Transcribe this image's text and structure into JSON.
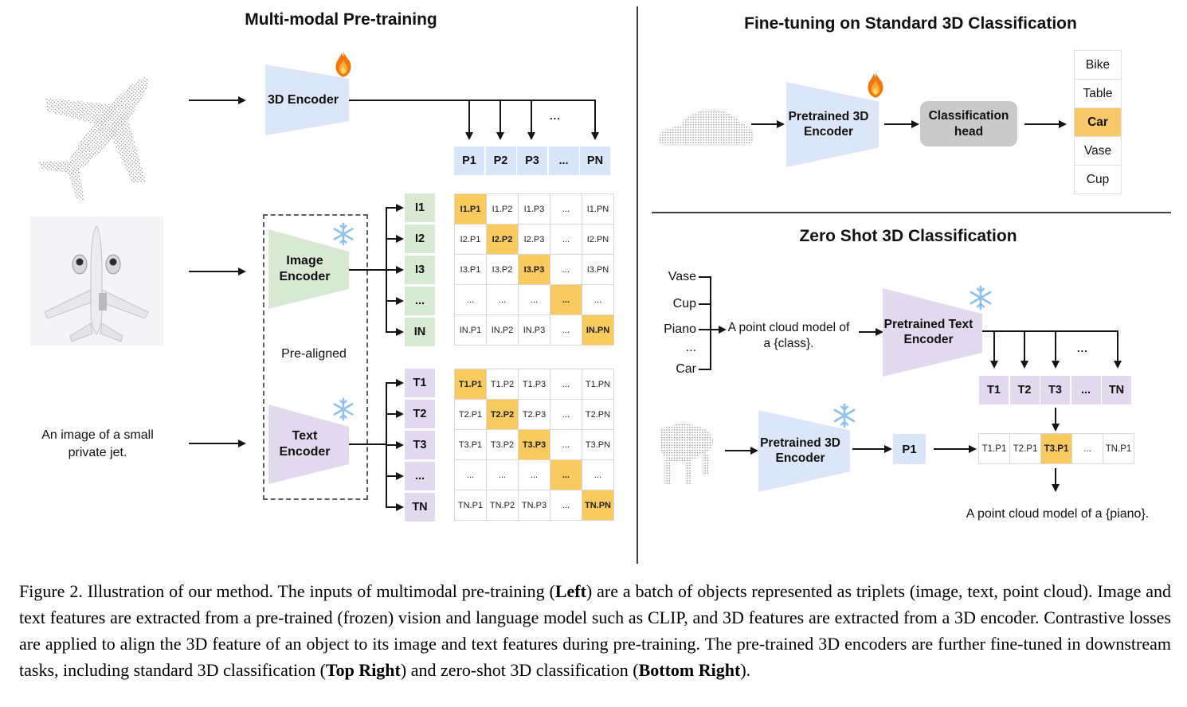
{
  "figure": {
    "left": {
      "title": "Multi-modal Pre-training",
      "encoder_3d_label": "3D Encoder",
      "image_encoder_label_1": "Image",
      "image_encoder_label_2": "Encoder",
      "text_encoder_label_1": "Text",
      "text_encoder_label_2": "Encoder",
      "pre_aligned": "Pre-aligned",
      "image_caption_1": "An image of a small",
      "image_caption_2": "private jet.",
      "dots": "...",
      "p_row": [
        "P1",
        "P2",
        "P3",
        "...",
        "PN"
      ],
      "i_col": [
        "I1",
        "I2",
        "I3",
        "...",
        "IN"
      ],
      "t_col": [
        "T1",
        "T2",
        "T3",
        "...",
        "TN"
      ],
      "i_matrix": [
        [
          "I1.P1",
          "I1.P2",
          "I1.P3",
          "...",
          "I1.PN"
        ],
        [
          "I2.P1",
          "I2.P2",
          "I2.P3",
          "...",
          "I2.PN"
        ],
        [
          "I3.P1",
          "I3.P2",
          "I3.P3",
          "...",
          "I3.PN"
        ],
        [
          "...",
          "...",
          "...",
          "...",
          "..."
        ],
        [
          "IN.P1",
          "IN.P2",
          "IN.P3",
          "...",
          "IN.PN"
        ]
      ],
      "t_matrix": [
        [
          "T1.P1",
          "T1.P2",
          "T1.P3",
          "...",
          "T1.PN"
        ],
        [
          "T2.P1",
          "T2.P2",
          "T2.P3",
          "...",
          "T2.PN"
        ],
        [
          "T3.P1",
          "T3.P2",
          "T3.P3",
          "...",
          "T3.PN"
        ],
        [
          "...",
          "...",
          "...",
          "...",
          "..."
        ],
        [
          "TN.P1",
          "TN.P2",
          "TN.P3",
          "...",
          "TN.PN"
        ]
      ]
    },
    "top_right": {
      "title": "Fine-tuning on Standard 3D Classification",
      "encoder_label_1": "Pretrained 3D",
      "encoder_label_2": "Encoder",
      "head_label_1": "Classification",
      "head_label_2": "head",
      "classes": [
        "Bike",
        "Table",
        "Car",
        "Vase",
        "Cup"
      ],
      "highlighted_class": "Car"
    },
    "bottom_right": {
      "title": "Zero Shot 3D Classification",
      "prompt_classes": [
        "Vase",
        "Cup",
        "Piano",
        "...",
        "Car"
      ],
      "prompt_1": "A point cloud model of",
      "prompt_2": "a {class}.",
      "text_encoder_label_1": "Pretrained Text",
      "text_encoder_label_2": "Encoder",
      "encoder_label_1": "Pretrained 3D",
      "encoder_label_2": "Encoder",
      "p1": "P1",
      "dots": "...",
      "t_row": [
        "T1",
        "T2",
        "T3",
        "...",
        "TN"
      ],
      "sim_row": [
        "T1.P1",
        "T2.P1",
        "T3.P1",
        "...",
        "TN.P1"
      ],
      "highlighted_sim": "T3.P1",
      "result": "A point cloud model of a {piano}."
    },
    "caption": {
      "p1": "Figure 2. Illustration of our method. The inputs of multimodal pre-training (",
      "b1": "Left",
      "p2": ") are a batch of objects represented as triplets (image, text, point cloud). Image and text features are extracted from a pre-trained (frozen) vision and language model such as CLIP, and 3D features are extracted from a 3D encoder. Contrastive losses are applied to align the 3D feature of an object to its image and text features during pre-training. The pre-trained 3D encoders are further fine-tuned in downstream tasks, including standard 3D classification (",
      "b2": "Top Right",
      "p3": ") and zero-shot 3D classification (",
      "b3": "Bottom Right",
      "p4": ")."
    },
    "icons": {
      "flame-icon": "trainable (fire)",
      "snowflake-icon": "frozen (snowflake)"
    },
    "colors": {
      "encoder_blue": "#DBE6F8",
      "encoder_green": "#D7E8D3",
      "encoder_purple": "#E3D9EE",
      "highlight_orange": "#F9CA5F",
      "head_gray": "#C9C9C9",
      "line_black": "#151515"
    }
  }
}
